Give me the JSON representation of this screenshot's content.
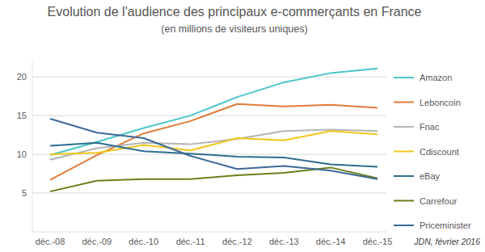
{
  "chart_data": {
    "type": "line",
    "title": "Evolution de l'audience des principaux e-commerçants en France",
    "subtitle": "(en millions de visiteurs uniques)",
    "annotation": "JDN, février 2016",
    "categories": [
      "déc.-08",
      "déc.-09",
      "déc.-10",
      "déc.-11",
      "déc.-12",
      "déc.-13",
      "déc.-14",
      "déc.-15"
    ],
    "series": [
      {
        "name": "Amazon",
        "color": "#4bc5c8",
        "values": [
          9.9,
          11.6,
          13.4,
          15.0,
          17.4,
          19.3,
          20.5,
          21.1
        ]
      },
      {
        "name": "Leboncoin",
        "color": "#e07b39",
        "values": [
          6.7,
          9.9,
          12.7,
          14.3,
          16.5,
          16.2,
          16.4,
          16.0
        ]
      },
      {
        "name": "Fnac",
        "color": "#b4b4b4",
        "values": [
          9.3,
          10.8,
          11.5,
          11.3,
          12.0,
          13.0,
          13.2,
          13.0
        ]
      },
      {
        "name": "Cdiscount",
        "color": "#f2c618",
        "values": [
          10.0,
          10.2,
          11.2,
          10.5,
          12.1,
          11.8,
          13.0,
          12.6
        ]
      },
      {
        "name": "eBay",
        "color": "#2e6e8e",
        "values": [
          11.1,
          11.5,
          10.4,
          10.1,
          9.7,
          9.6,
          8.7,
          8.4
        ]
      },
      {
        "name": "Carrefour",
        "color": "#6b7f1a",
        "values": [
          5.2,
          6.6,
          6.8,
          6.8,
          7.3,
          7.6,
          8.3,
          6.9
        ]
      },
      {
        "name": "Priceminister",
        "color": "#3a6a96",
        "values": [
          14.6,
          12.8,
          12.1,
          9.8,
          8.1,
          8.5,
          7.9,
          6.8
        ]
      }
    ],
    "ylim": [
      0,
      22
    ],
    "yticks": [
      5,
      10,
      15,
      20
    ],
    "grid": true,
    "legend": "right"
  }
}
